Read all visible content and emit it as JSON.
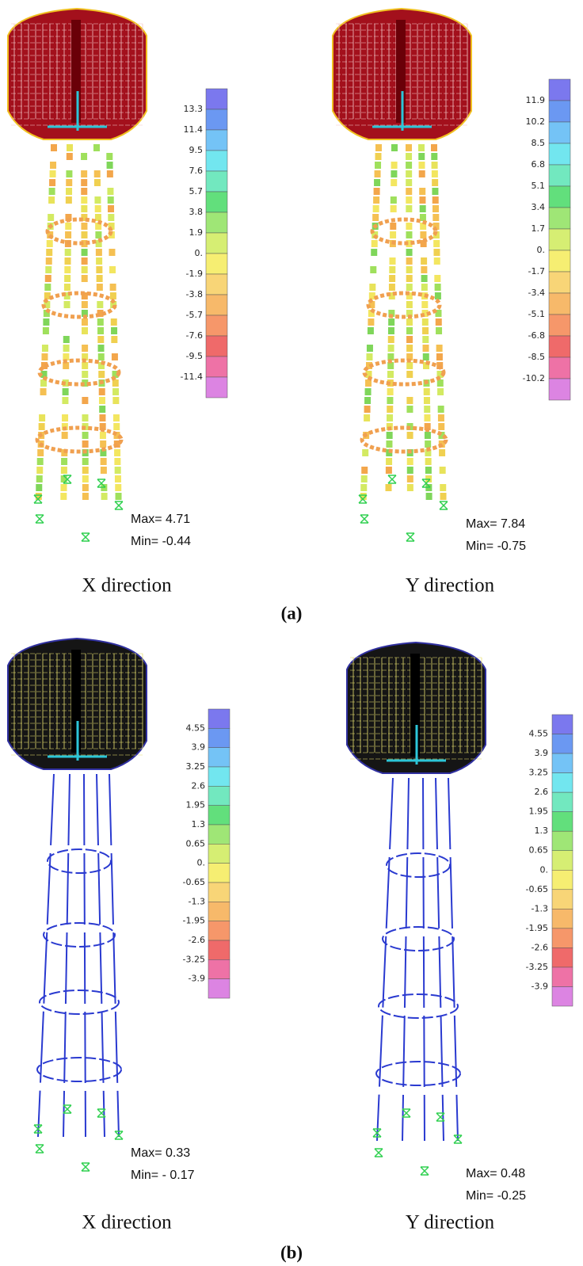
{
  "panels": [
    {
      "scale_labels": [
        "13.3",
        "11.4",
        "9.5",
        "7.6",
        "5.7",
        "3.8",
        "1.9",
        "0.",
        "-1.9",
        "-3.8",
        "-5.7",
        "-7.6",
        "-9.5",
        "-11.4"
      ],
      "max": "Max= 4.71",
      "min": "Min= -0.44",
      "caption": "X direction"
    },
    {
      "scale_labels": [
        "11.9",
        "10.2",
        "8.5",
        "6.8",
        "5.1",
        "3.4",
        "1.7",
        "0.",
        "-1.7",
        "-3.4",
        "-5.1",
        "-6.8",
        "-8.5",
        "-10.2"
      ],
      "max": "Max= 7.84",
      "min": "Min=  -0.75",
      "caption": "Y direction"
    },
    {
      "scale_labels": [
        "4.55",
        "3.9",
        "3.25",
        "2.6",
        "1.95",
        "1.3",
        "0.65",
        "0.",
        "-0.65",
        "-1.3",
        "-1.95",
        "-2.6",
        "-3.25",
        "-3.9"
      ],
      "max": "Max= 0.33",
      "min": "Min= - 0.17",
      "caption": "X direction"
    },
    {
      "scale_labels": [
        "4.55",
        "3.9",
        "3.25",
        "2.6",
        "1.95",
        "1.3",
        "0.65",
        "0.",
        "-0.65",
        "-1.3",
        "-1.95",
        "-2.6",
        "-3.25",
        "-3.9"
      ],
      "max": "Max=  0.48",
      "min": "Min= -0.25",
      "caption": "Y direction"
    }
  ],
  "group_labels": [
    "(a)",
    "(b)"
  ]
}
